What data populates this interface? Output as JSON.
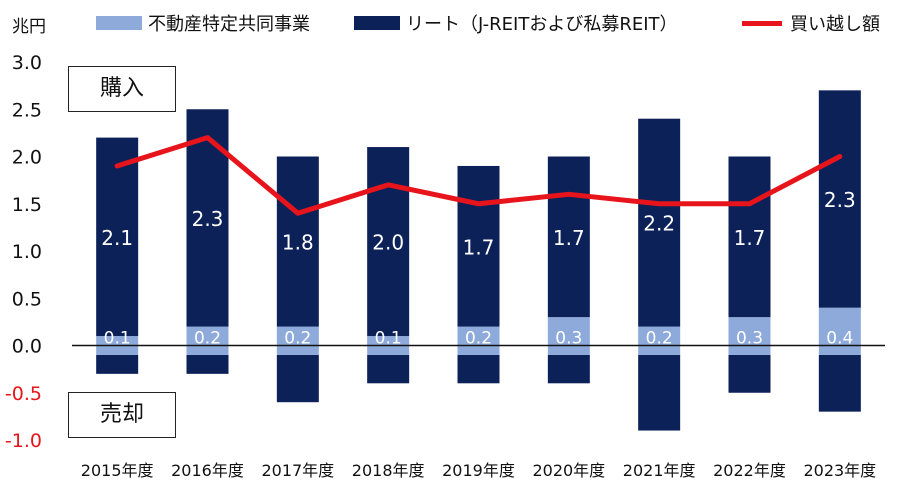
{
  "chart_data": {
    "type": "bar",
    "unit_label": "兆円",
    "categories": [
      "2015年度",
      "2016年度",
      "2017年度",
      "2018年度",
      "2019年度",
      "2020年度",
      "2021年度",
      "2022年度",
      "2023年度"
    ],
    "series": [
      {
        "name": "不動産特定共同事業",
        "kind": "bar",
        "color": "#8eaadb",
        "positive": [
          0.1,
          0.2,
          0.2,
          0.1,
          0.2,
          0.3,
          0.2,
          0.3,
          0.4
        ],
        "negative": [
          -0.1,
          -0.1,
          -0.1,
          -0.1,
          -0.1,
          -0.1,
          -0.1,
          -0.1,
          -0.1
        ],
        "labels": [
          "0.1",
          "0.2",
          "0.2",
          "0.1",
          "0.2",
          "0.3",
          "0.2",
          "0.3",
          "0.4"
        ]
      },
      {
        "name": "リート（J-REITおよび私募REIT）",
        "kind": "bar",
        "color": "#0d2159",
        "positive": [
          2.1,
          2.3,
          1.8,
          2.0,
          1.7,
          1.7,
          2.2,
          1.7,
          2.3
        ],
        "negative": [
          -0.2,
          -0.2,
          -0.5,
          -0.3,
          -0.3,
          -0.3,
          -0.8,
          -0.4,
          -0.6
        ],
        "labels": [
          "2.1",
          "2.3",
          "1.8",
          "2.0",
          "1.7",
          "1.7",
          "2.2",
          "1.7",
          "2.3"
        ]
      },
      {
        "name": "買い越し額",
        "kind": "line",
        "color": "#e8141c",
        "values": [
          1.9,
          2.2,
          1.4,
          1.7,
          1.5,
          1.6,
          1.5,
          1.5,
          2.0
        ]
      }
    ],
    "ylim": [
      -1.0,
      3.0
    ],
    "yticks": [
      "3.0",
      "2.5",
      "2.0",
      "1.5",
      "1.0",
      "0.5",
      "0.0",
      "-0.5",
      "-1.0"
    ],
    "ytick_values": [
      3.0,
      2.5,
      2.0,
      1.5,
      1.0,
      0.5,
      0.0,
      -0.5,
      -1.0
    ],
    "negative_tick_color": "#e8141c",
    "annotations": {
      "buy": "購入",
      "sell": "売却"
    },
    "legend_position": "top",
    "grid": false
  }
}
